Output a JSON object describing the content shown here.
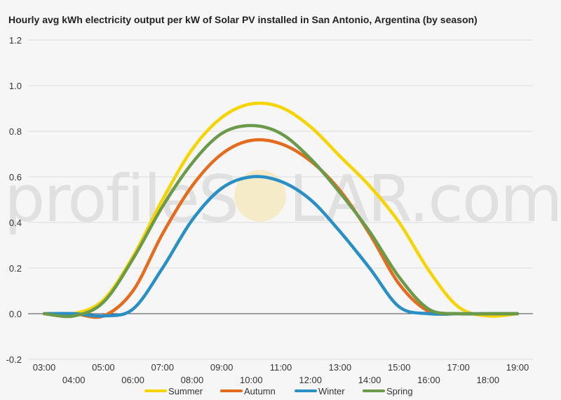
{
  "chart_data": {
    "type": "line",
    "title": "Hourly avg kWh electricity output per kW of Solar PV installed in San Antonio, Argentina (by season)",
    "xlabel": "",
    "ylabel": "",
    "x_labels_row1": [
      "03:00",
      "05:00",
      "07:00",
      "09:00",
      "11:00",
      "13:00",
      "15:00",
      "17:00",
      "19:00"
    ],
    "x_labels_row2": [
      "04:00",
      "06:00",
      "08:00",
      "10:00",
      "12:00",
      "14:00",
      "16:00",
      "18:00"
    ],
    "x": [
      3,
      4,
      5,
      6,
      7,
      8,
      9,
      10,
      11,
      12,
      13,
      14,
      15,
      16,
      17,
      18,
      19
    ],
    "xlim": [
      3,
      19
    ],
    "ylim": [
      -0.2,
      1.2
    ],
    "yticks": [
      "-0.2",
      "0.0",
      "0.2",
      "0.4",
      "0.6",
      "0.8",
      "1.0",
      "1.2"
    ],
    "grid": true,
    "legend_position": "bottom",
    "series": [
      {
        "name": "Summer",
        "color": "#f5d400",
        "values": [
          0.0,
          0.0,
          0.06,
          0.25,
          0.5,
          0.72,
          0.86,
          0.92,
          0.905,
          0.82,
          0.69,
          0.56,
          0.4,
          0.19,
          0.03,
          -0.01,
          0.0
        ]
      },
      {
        "name": "Autumn",
        "color": "#e46c1e",
        "values": [
          0.0,
          0.0,
          -0.01,
          0.1,
          0.35,
          0.56,
          0.7,
          0.76,
          0.745,
          0.67,
          0.54,
          0.35,
          0.13,
          0.01,
          0.0,
          0.0,
          0.0
        ]
      },
      {
        "name": "Winter",
        "color": "#2a8fc4",
        "values": [
          0.0,
          0.0,
          -0.01,
          0.02,
          0.2,
          0.41,
          0.55,
          0.6,
          0.58,
          0.5,
          0.36,
          0.2,
          0.03,
          0.0,
          0.0,
          0.0,
          0.0
        ]
      },
      {
        "name": "Spring",
        "color": "#6b9a4a",
        "values": [
          0.0,
          -0.01,
          0.05,
          0.24,
          0.47,
          0.66,
          0.79,
          0.825,
          0.79,
          0.68,
          0.53,
          0.36,
          0.16,
          0.02,
          0.0,
          0.0,
          0.0
        ]
      }
    ]
  },
  "watermark": {
    "left_text": "profileS",
    "right_text": "LAR.com"
  }
}
